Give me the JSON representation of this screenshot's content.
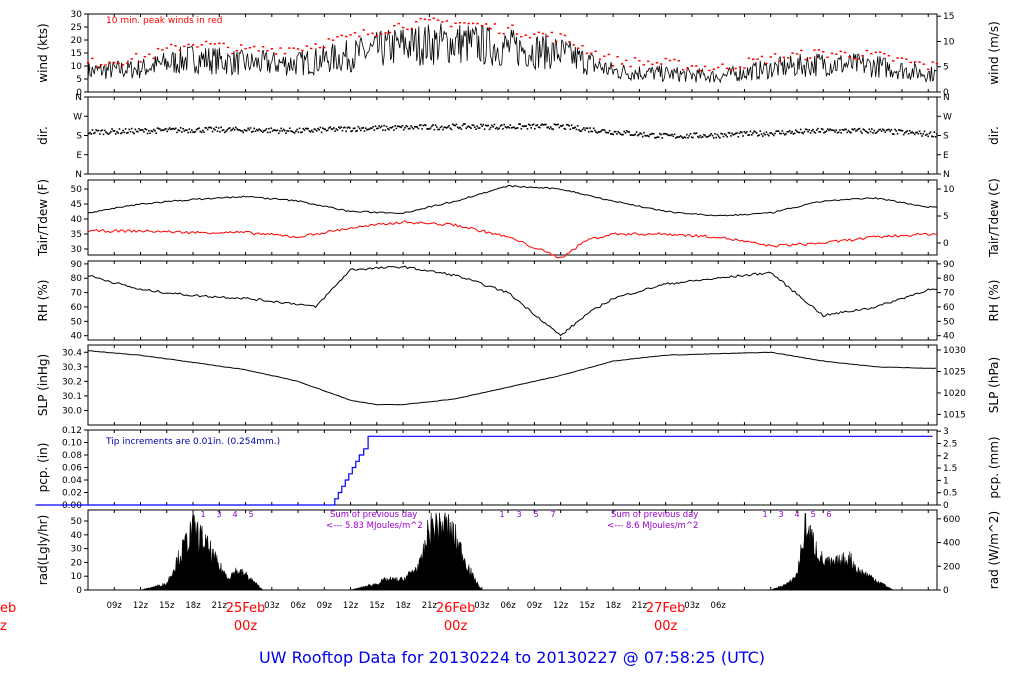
{
  "title": "UW Rooftop Data for 20130224  to  20130227 @ 07:58:25  (UTC)",
  "colors": {
    "title": "#0000ee",
    "peak": "#ff0000",
    "dew": "#ff0000",
    "precip": "#0000ff",
    "note_blue": "#0000aa",
    "radnote": "#9900cc",
    "day_label": "#ff0000",
    "line": "#000000"
  },
  "x_axis": {
    "ticks": [
      "09z",
      "12z",
      "15z",
      "18z",
      "21z",
      "",
      "03z",
      "06z",
      "09z",
      "12z",
      "15z",
      "18z",
      "21z",
      "",
      "03z",
      "06z",
      "09z",
      "12z",
      "15z",
      "18z",
      "21z",
      "",
      "03z",
      "06z"
    ],
    "day_labels": [
      {
        "date": "25Feb",
        "time": "00z"
      },
      {
        "date": "26Feb",
        "time": "00z"
      },
      {
        "date": "27Feb",
        "time": "00z"
      }
    ],
    "partial_left": {
      "date": "eb",
      "time": "z"
    }
  },
  "chart_data": [
    {
      "type": "line",
      "name": "wind",
      "ylabel": "wind (kts)",
      "ylabel_right": "wind (m/s)",
      "yticks": [
        "0",
        "5",
        "10",
        "15",
        "20",
        "25",
        "30"
      ],
      "yticks_right": [
        "0",
        "5",
        "10",
        "15"
      ],
      "ylim": [
        0,
        30
      ],
      "annotation": "10 min. peak winds in red",
      "x_hours": [
        0,
        6,
        12,
        18,
        24,
        30,
        36,
        42,
        48,
        54,
        60,
        66,
        72,
        78,
        84,
        90,
        96,
        102
      ],
      "mean_kts": [
        7,
        8,
        9,
        13,
        11,
        11,
        14,
        18,
        19,
        17,
        15,
        8,
        7,
        6,
        9,
        11,
        10,
        7
      ],
      "peak_kts": [
        10,
        11,
        13,
        19,
        16,
        17,
        21,
        26,
        27,
        24,
        21,
        12,
        11,
        9,
        13,
        15,
        14,
        10
      ]
    },
    {
      "type": "scatter",
      "name": "direction",
      "ylabel": "dir.",
      "ylabel_right": "dir.",
      "yticks": [
        "N",
        "E",
        "S",
        "W",
        "N"
      ],
      "x_hours": [
        0,
        6,
        12,
        18,
        24,
        30,
        36,
        42,
        48,
        54,
        60,
        66,
        72,
        78,
        84,
        90,
        96,
        102
      ],
      "dir_deg": [
        195,
        200,
        205,
        210,
        210,
        205,
        215,
        220,
        225,
        225,
        225,
        200,
        180,
        185,
        195,
        205,
        205,
        190
      ]
    },
    {
      "type": "line",
      "name": "temperature",
      "ylabel": "Tair/Tdew (F)",
      "ylabel_right": "Tair/Tdew (C)",
      "yticks": [
        "30",
        "35",
        "40",
        "45",
        "50"
      ],
      "yticks_right": [
        "0",
        "5",
        "10"
      ],
      "ylim": [
        28,
        53
      ],
      "x_hours": [
        0,
        6,
        12,
        18,
        24,
        30,
        36,
        42,
        48,
        54,
        60,
        63,
        66,
        72,
        78,
        84,
        90,
        96,
        102
      ],
      "tair_f": [
        41,
        42,
        45,
        46.5,
        47.5,
        46,
        42.5,
        42,
        46,
        51,
        50,
        48,
        46,
        42.5,
        41,
        42,
        46,
        47,
        44
      ],
      "tdew_f": [
        35.5,
        36,
        36,
        35.5,
        35.5,
        34,
        37,
        39,
        38,
        34,
        27,
        33,
        35,
        35,
        34,
        31,
        32,
        34,
        35
      ]
    },
    {
      "type": "line",
      "name": "humidity",
      "ylabel": "RH (%)",
      "ylabel_right": "RH (%)",
      "yticks": [
        "40",
        "50",
        "60",
        "70",
        "80",
        "90"
      ],
      "yticks_right": [
        "40",
        "50",
        "60",
        "70",
        "80",
        "90"
      ],
      "ylim": [
        37,
        92
      ],
      "x_hours": [
        0,
        6,
        12,
        18,
        24,
        30,
        32,
        36,
        42,
        48,
        54,
        60,
        63,
        66,
        72,
        78,
        84,
        90,
        96,
        102
      ],
      "rh_pct": [
        80,
        82,
        72,
        68,
        66,
        62,
        60,
        86,
        88,
        82,
        70,
        40,
        55,
        66,
        76,
        80,
        84,
        54,
        60,
        72
      ]
    },
    {
      "type": "line",
      "name": "pressure",
      "ylabel": "SLP (inHg)",
      "ylabel_right": "SLP (hPa)",
      "yticks": [
        "30.0",
        "30.1",
        "30.2",
        "30.3",
        "30.4"
      ],
      "yticks_right": [
        "1015",
        "1020",
        "1025",
        "1030"
      ],
      "ylim": [
        29.9,
        30.45
      ],
      "x_hours": [
        0,
        6,
        12,
        18,
        24,
        30,
        36,
        39,
        42,
        48,
        54,
        60,
        66,
        72,
        78,
        84,
        90,
        96,
        102
      ],
      "slp_inhg": [
        30.42,
        30.41,
        30.38,
        30.33,
        30.28,
        30.2,
        30.07,
        30.04,
        30.04,
        30.08,
        30.16,
        30.24,
        30.34,
        30.38,
        30.39,
        30.4,
        30.34,
        30.3,
        30.29
      ]
    },
    {
      "type": "line",
      "name": "precipitation",
      "ylabel": "pcp. (in)",
      "ylabel_right": "pcp. (mm)",
      "yticks": [
        "0.00",
        "0.02",
        "0.04",
        "0.06",
        "0.08",
        "0.10",
        "0.12"
      ],
      "yticks_right": [
        "0",
        "0.5",
        "1",
        "1.5",
        "2",
        "2.5",
        "3"
      ],
      "ylim": [
        0,
        0.12
      ],
      "annotation": "Tip increments are 0.01in. (0.254mm.)",
      "x_hours": [
        0,
        33.8,
        34.2,
        34.6,
        35.0,
        35.4,
        35.8,
        36.2,
        36.6,
        37.0,
        37.5,
        38.0,
        102.5
      ],
      "pcp_in": [
        0,
        0,
        0.01,
        0.02,
        0.03,
        0.04,
        0.05,
        0.06,
        0.07,
        0.08,
        0.09,
        0.11,
        0.11
      ]
    },
    {
      "type": "area",
      "name": "radiation",
      "ylabel": "rad(Lgly/hr)",
      "ylabel_right": "rad (W/m^2)",
      "yticks": [
        "0",
        "10",
        "20",
        "30",
        "40",
        "50"
      ],
      "yticks_right": [
        "0",
        "200",
        "400",
        "600"
      ],
      "ylim": [
        0,
        58
      ],
      "hour_labels_day1": [
        "1",
        "3",
        "4",
        "5"
      ],
      "hour_labels_day2": [
        "1",
        "3",
        "5",
        "7"
      ],
      "hour_labels_day3": [
        "1",
        "3",
        "4",
        "5",
        "6"
      ],
      "note1_line1": "Sum of previous day",
      "note1_line2": "<--- 5.83 MJoules/m^2",
      "note2_line1": "Sum of previous day",
      "note2_line2": "<--- 8.6 MJoules/m^2",
      "days": [
        {
          "x_hours": [
            12,
            15,
            16,
            18,
            19,
            20,
            21,
            22,
            23,
            24,
            25,
            26
          ],
          "rad": [
            0,
            5,
            20,
            48,
            40,
            30,
            18,
            10,
            15,
            12,
            6,
            0
          ]
        },
        {
          "x_hours": [
            36,
            39,
            40,
            42,
            44,
            45,
            46,
            47,
            48,
            49,
            50,
            51
          ],
          "rad": [
            0,
            5,
            8,
            8,
            20,
            48,
            52,
            50,
            40,
            25,
            10,
            0
          ]
        },
        {
          "x_hours": [
            84,
            86,
            87,
            88,
            89,
            90,
            91,
            92,
            93,
            94,
            95,
            96,
            98
          ],
          "rad": [
            0,
            5,
            12,
            50,
            35,
            22,
            20,
            22,
            25,
            15,
            12,
            8,
            0
          ]
        }
      ]
    }
  ]
}
